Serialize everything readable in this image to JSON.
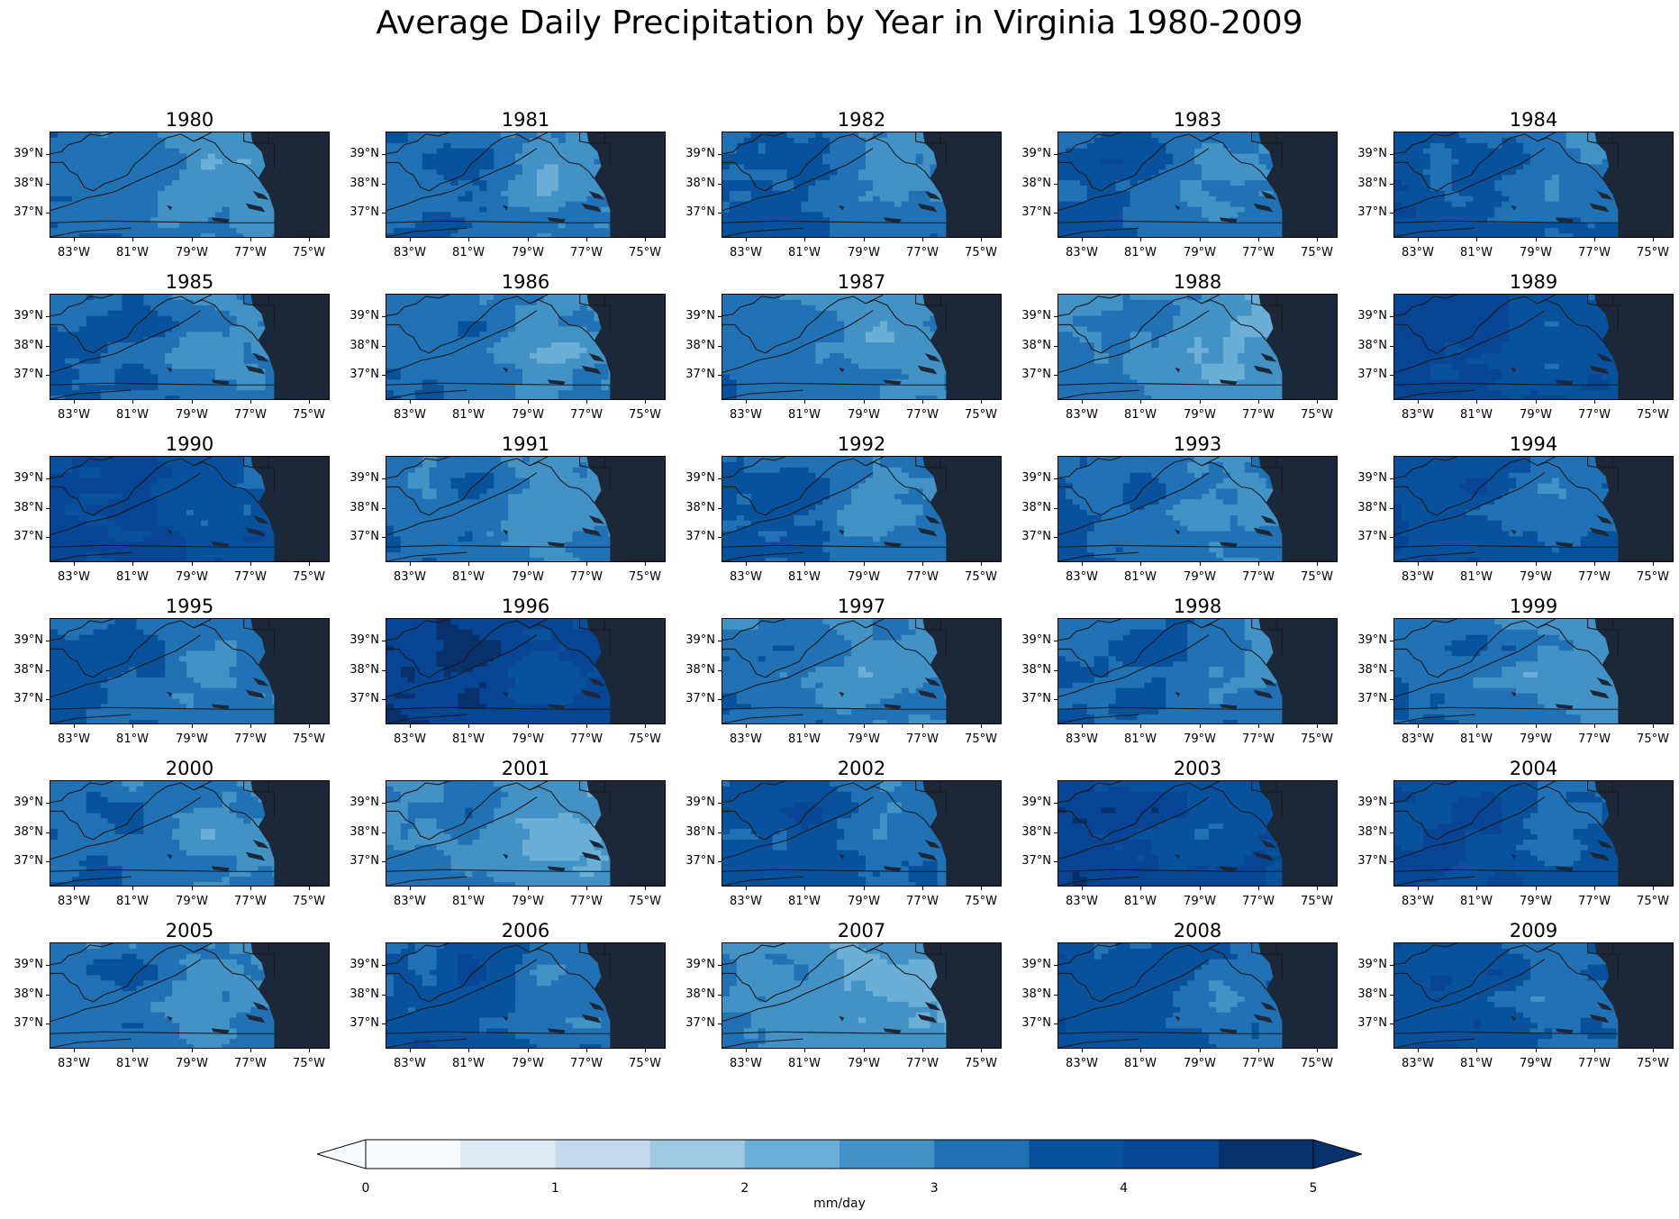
{
  "title": "Average Daily Precipitation by Year in Virginia 1980-2009",
  "map": {
    "lat_ticks": [
      "39°N",
      "38°N",
      "37°N"
    ],
    "lon_ticks": [
      "83°W",
      "81°W",
      "79°W",
      "77°W",
      "75°W"
    ],
    "panels": [
      {
        "year": "1980",
        "level": 3.0
      },
      {
        "year": "1981",
        "level": 3.1
      },
      {
        "year": "1982",
        "level": 3.3
      },
      {
        "year": "1983",
        "level": 3.3
      },
      {
        "year": "1984",
        "level": 3.4
      },
      {
        "year": "1985",
        "level": 3.2
      },
      {
        "year": "1986",
        "level": 3.0
      },
      {
        "year": "1987",
        "level": 3.0
      },
      {
        "year": "1988",
        "level": 2.8
      },
      {
        "year": "1989",
        "level": 3.9
      },
      {
        "year": "1990",
        "level": 3.8
      },
      {
        "year": "1991",
        "level": 3.0
      },
      {
        "year": "1992",
        "level": 3.2
      },
      {
        "year": "1993",
        "level": 3.1
      },
      {
        "year": "1994",
        "level": 3.5
      },
      {
        "year": "1995",
        "level": 3.2
      },
      {
        "year": "1996",
        "level": 4.2
      },
      {
        "year": "1997",
        "level": 3.0
      },
      {
        "year": "1998",
        "level": 3.3
      },
      {
        "year": "1999",
        "level": 3.0
      },
      {
        "year": "2000",
        "level": 3.1
      },
      {
        "year": "2001",
        "level": 2.8
      },
      {
        "year": "2002",
        "level": 3.4
      },
      {
        "year": "2003",
        "level": 4.0
      },
      {
        "year": "2004",
        "level": 3.7
      },
      {
        "year": "2005",
        "level": 3.1
      },
      {
        "year": "2006",
        "level": 3.4
      },
      {
        "year": "2007",
        "level": 2.7
      },
      {
        "year": "2008",
        "level": 3.5
      },
      {
        "year": "2009",
        "level": 3.5
      }
    ]
  },
  "colorbar": {
    "label": "mm/day",
    "tick_labels": [
      "0",
      "1",
      "2",
      "3",
      "4",
      "5"
    ],
    "min": 0,
    "max": 5,
    "step": 0.5,
    "colors": [
      "#f7fbff",
      "#deebf7",
      "#c6dbef",
      "#9ecae1",
      "#6baed6",
      "#4292c6",
      "#2171b5",
      "#08519c",
      "#084594",
      "#08306b"
    ],
    "extend": "both"
  },
  "ocean_color": "#1c2838"
}
